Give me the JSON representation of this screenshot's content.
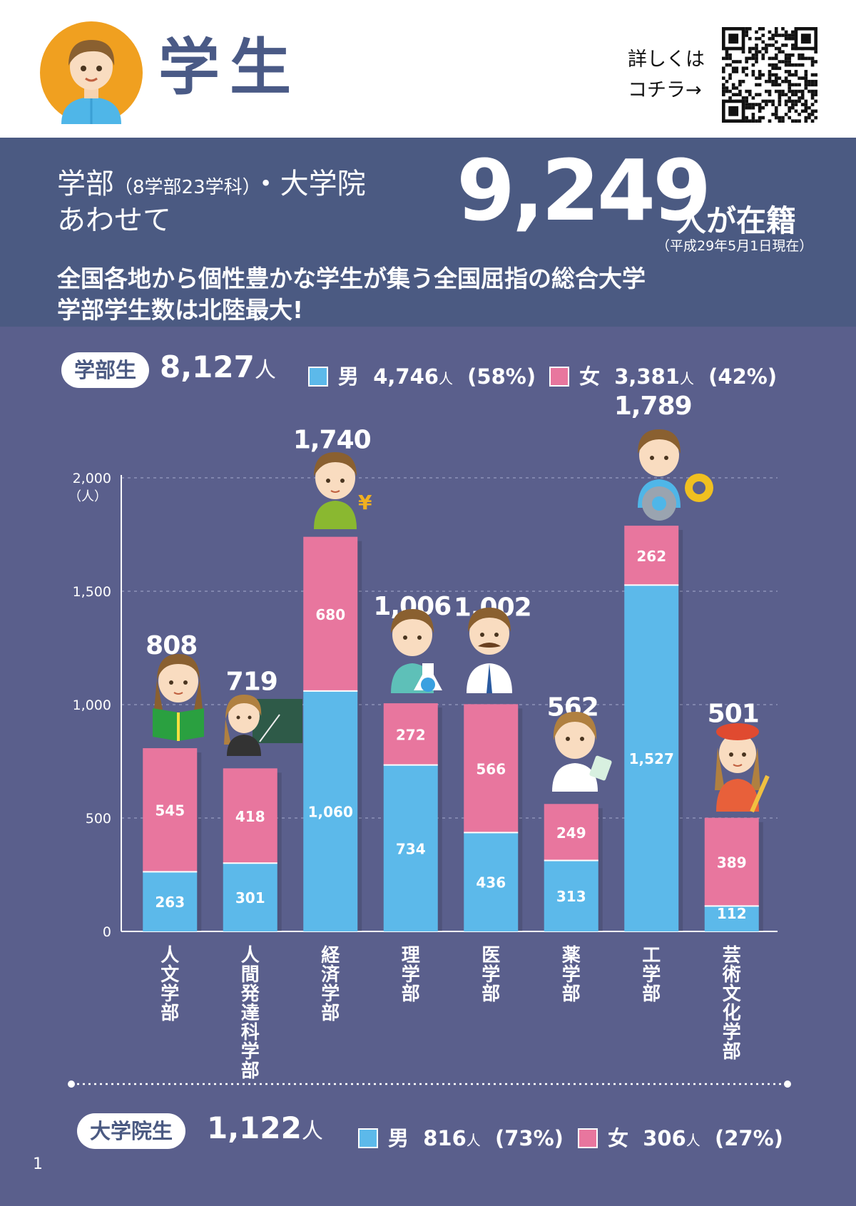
{
  "header": {
    "title": "学生",
    "qr_note_line1": "詳しくは",
    "qr_note_line2": "コチラ→"
  },
  "intro": {
    "line1": "学部",
    "line1_detail": "（8学部23学科）",
    "line1_suffix": "・大学院",
    "line2": "あわせて",
    "total": "9,249",
    "total_suffix": "人が在籍",
    "as_of": "（平成29年5月1日現在）",
    "tagline1": "全国各地から個性豊かな学生が集う全国屈指の総合大学",
    "tagline2": "学部学生数は北陸最大!"
  },
  "undergrad": {
    "label": "学部生",
    "count": "8,127",
    "unit": "人",
    "male_label": "男",
    "male_count": "4,746",
    "male_unit": "人",
    "male_pct": "(58%)",
    "female_label": "女",
    "female_count": "3,381",
    "female_unit": "人",
    "female_pct": "(42%)"
  },
  "graduate": {
    "label": "大学院生",
    "count": "1,122",
    "unit": "人",
    "male_label": "男",
    "male_count": "816",
    "male_unit": "人",
    "male_pct": "(73%)",
    "female_label": "女",
    "female_count": "306",
    "female_unit": "人",
    "female_pct": "(27%)"
  },
  "colors": {
    "male": "#5cb9ea",
    "female": "#e8769e",
    "background": "#5a5f8c",
    "intro_background": "#4b5a82"
  },
  "chart_data": {
    "type": "bar",
    "stacked": true,
    "categories": [
      "人文学部",
      "人間発達科学部",
      "経済学部",
      "理学部",
      "医学部",
      "薬学部",
      "工学部",
      "芸術文化学部"
    ],
    "series": [
      {
        "name": "男",
        "color": "#5cb9ea",
        "values": [
          263,
          301,
          1060,
          734,
          436,
          313,
          1527,
          112
        ]
      },
      {
        "name": "女",
        "color": "#e8769e",
        "values": [
          545,
          418,
          680,
          272,
          566,
          249,
          262,
          389
        ]
      }
    ],
    "totals": [
      808,
      719,
      1740,
      1006,
      1002,
      562,
      1789,
      501
    ],
    "ylim": [
      0,
      2000
    ],
    "yticks": [
      "0",
      "500",
      "1,000",
      "1,500",
      "2,000"
    ],
    "yunit": "（人）",
    "grid": true
  },
  "page_number": "1"
}
